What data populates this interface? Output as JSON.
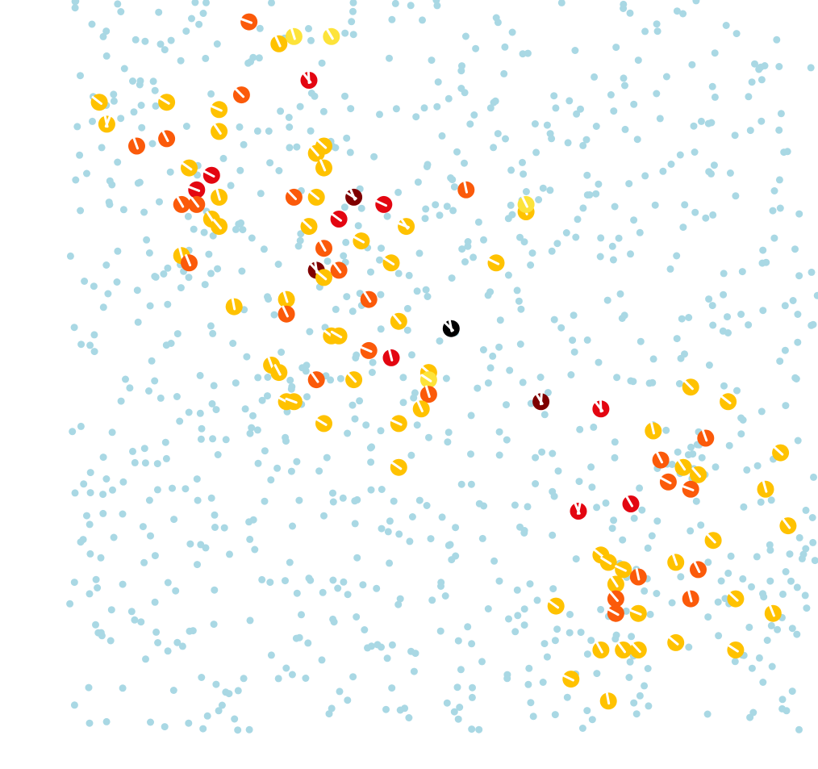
{
  "chart_data": {
    "type": "scatter",
    "title": "",
    "xlabel": "",
    "ylabel": "",
    "xlim": [
      0,
      1
    ],
    "ylim": [
      0,
      1
    ],
    "grid": false,
    "axes_visible": false,
    "legend": "none",
    "colors": {
      "background_points": "#a9d8e4",
      "mark_line": "#ffffff",
      "levels": [
        "#fde33a",
        "#ffc200",
        "#fb5a0a",
        "#e30611",
        "#7f0000",
        "#000000"
      ]
    },
    "background_seed": 7,
    "background_count": 950,
    "highlighted": [
      [
        0.24,
        0.97,
        2,
        1
      ],
      [
        0.3,
        0.95,
        0,
        1
      ],
      [
        0.28,
        0.94,
        1,
        1
      ],
      [
        0.35,
        0.95,
        0,
        1
      ],
      [
        0.32,
        0.89,
        3,
        2
      ],
      [
        0.23,
        0.87,
        2,
        1
      ],
      [
        0.04,
        0.86,
        1,
        1
      ],
      [
        0.13,
        0.86,
        1,
        1
      ],
      [
        0.2,
        0.85,
        1,
        1
      ],
      [
        0.05,
        0.83,
        1,
        2
      ],
      [
        0.09,
        0.8,
        2,
        1
      ],
      [
        0.13,
        0.81,
        2,
        1
      ],
      [
        0.2,
        0.82,
        1,
        1
      ],
      [
        0.33,
        0.79,
        1,
        1
      ],
      [
        0.34,
        0.8,
        1,
        1
      ],
      [
        0.16,
        0.77,
        1,
        1
      ],
      [
        0.19,
        0.76,
        3,
        1
      ],
      [
        0.17,
        0.74,
        3,
        1
      ],
      [
        0.2,
        0.73,
        1,
        1
      ],
      [
        0.34,
        0.77,
        1,
        1
      ],
      [
        0.15,
        0.72,
        2,
        1
      ],
      [
        0.17,
        0.72,
        2,
        1
      ],
      [
        0.3,
        0.73,
        2,
        1
      ],
      [
        0.33,
        0.73,
        1,
        1
      ],
      [
        0.38,
        0.73,
        4,
        2
      ],
      [
        0.42,
        0.72,
        3,
        1
      ],
      [
        0.53,
        0.74,
        2,
        1
      ],
      [
        0.61,
        0.71,
        1,
        1
      ],
      [
        0.61,
        0.72,
        0,
        1
      ],
      [
        0.19,
        0.7,
        1,
        1
      ],
      [
        0.2,
        0.69,
        1,
        1
      ],
      [
        0.32,
        0.69,
        1,
        1
      ],
      [
        0.36,
        0.7,
        3,
        1
      ],
      [
        0.39,
        0.67,
        1,
        1
      ],
      [
        0.45,
        0.69,
        1,
        2
      ],
      [
        0.15,
        0.65,
        1,
        1
      ],
      [
        0.16,
        0.64,
        2,
        1
      ],
      [
        0.34,
        0.66,
        2,
        1
      ],
      [
        0.36,
        0.63,
        2,
        1
      ],
      [
        0.33,
        0.63,
        4,
        2
      ],
      [
        0.34,
        0.62,
        1,
        1
      ],
      [
        0.43,
        0.64,
        1,
        1
      ],
      [
        0.57,
        0.64,
        1,
        1
      ],
      [
        0.22,
        0.58,
        1,
        1
      ],
      [
        0.29,
        0.59,
        1,
        1
      ],
      [
        0.29,
        0.57,
        2,
        1
      ],
      [
        0.4,
        0.59,
        2,
        1
      ],
      [
        0.44,
        0.56,
        1,
        1
      ],
      [
        0.51,
        0.55,
        5,
        2
      ],
      [
        0.35,
        0.54,
        1,
        1
      ],
      [
        0.36,
        0.54,
        1,
        1
      ],
      [
        0.4,
        0.52,
        2,
        1
      ],
      [
        0.43,
        0.51,
        3,
        1
      ],
      [
        0.27,
        0.5,
        1,
        1
      ],
      [
        0.28,
        0.49,
        1,
        1
      ],
      [
        0.33,
        0.48,
        2,
        1
      ],
      [
        0.38,
        0.48,
        1,
        1
      ],
      [
        0.48,
        0.49,
        1,
        1
      ],
      [
        0.48,
        0.48,
        0,
        1
      ],
      [
        0.29,
        0.45,
        1,
        1
      ],
      [
        0.3,
        0.45,
        1,
        1
      ],
      [
        0.48,
        0.46,
        2,
        1
      ],
      [
        0.47,
        0.44,
        1,
        1
      ],
      [
        0.63,
        0.45,
        4,
        2
      ],
      [
        0.71,
        0.44,
        3,
        2
      ],
      [
        0.83,
        0.47,
        1,
        1
      ],
      [
        0.88,
        0.45,
        1,
        1
      ],
      [
        0.34,
        0.42,
        1,
        1
      ],
      [
        0.44,
        0.42,
        1,
        1
      ],
      [
        0.78,
        0.41,
        1,
        1
      ],
      [
        0.85,
        0.4,
        2,
        1
      ],
      [
        0.79,
        0.37,
        2,
        1
      ],
      [
        0.82,
        0.36,
        1,
        1
      ],
      [
        0.84,
        0.35,
        1,
        1
      ],
      [
        0.95,
        0.38,
        1,
        1
      ],
      [
        0.44,
        0.36,
        1,
        1
      ],
      [
        0.8,
        0.34,
        2,
        1
      ],
      [
        0.83,
        0.33,
        2,
        1
      ],
      [
        0.93,
        0.33,
        1,
        1
      ],
      [
        0.68,
        0.3,
        3,
        2
      ],
      [
        0.75,
        0.31,
        3,
        1
      ],
      [
        0.96,
        0.28,
        1,
        1
      ],
      [
        0.86,
        0.26,
        1,
        1
      ],
      [
        0.71,
        0.24,
        1,
        1
      ],
      [
        0.72,
        0.23,
        1,
        1
      ],
      [
        0.74,
        0.22,
        1,
        1
      ],
      [
        0.76,
        0.21,
        2,
        1
      ],
      [
        0.81,
        0.23,
        1,
        1
      ],
      [
        0.84,
        0.22,
        2,
        1
      ],
      [
        0.73,
        0.2,
        1,
        1
      ],
      [
        0.73,
        0.18,
        2,
        1
      ],
      [
        0.89,
        0.18,
        1,
        1
      ],
      [
        0.65,
        0.17,
        1,
        1
      ],
      [
        0.73,
        0.16,
        2,
        1
      ],
      [
        0.76,
        0.16,
        1,
        1
      ],
      [
        0.83,
        0.18,
        2,
        1
      ],
      [
        0.94,
        0.16,
        1,
        1
      ],
      [
        0.71,
        0.11,
        1,
        1
      ],
      [
        0.74,
        0.11,
        1,
        1
      ],
      [
        0.76,
        0.11,
        1,
        1
      ],
      [
        0.81,
        0.12,
        1,
        1
      ],
      [
        0.89,
        0.11,
        1,
        1
      ],
      [
        0.67,
        0.07,
        1,
        1
      ],
      [
        0.72,
        0.04,
        1,
        1
      ]
    ]
  }
}
